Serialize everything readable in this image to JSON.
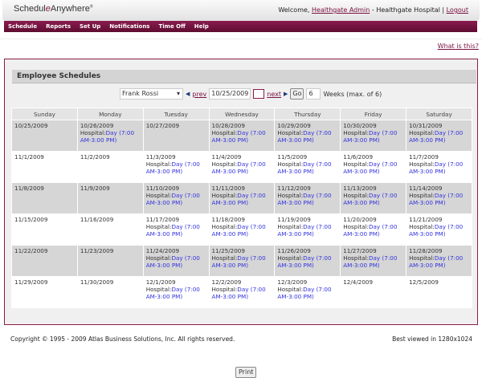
{
  "header": {
    "logo": "ScheduleAnywhere",
    "welcome_prefix": "Welcome, ",
    "user": "Healthgate Admin",
    "org": " - Healthgate Hospital | ",
    "logout": "Logout"
  },
  "nav": [
    "Schedule",
    "Reports",
    "Set Up",
    "Notifications",
    "Time Off",
    "Help"
  ],
  "what_is_this": "What is this?",
  "panel": {
    "title": "Employee Schedules",
    "employee": "Frank Rossi",
    "prev": "prev",
    "date": "10/25/2009",
    "next": "next",
    "go": "Go",
    "weeks": "6",
    "weeks_label": "Weeks (max. of 6)",
    "print": "Print"
  },
  "days": [
    "Sunday",
    "Monday",
    "Tuesday",
    "Wednesday",
    "Thursday",
    "Friday",
    "Saturday"
  ],
  "shift_prefix": "Hospital:",
  "shift_label": "Day (7:00 AM-3:00 PM)",
  "weeks": [
    [
      {
        "d": "10/25/2009",
        "s": false
      },
      {
        "d": "10/26/2009",
        "s": true
      },
      {
        "d": "10/27/2009",
        "s": false
      },
      {
        "d": "10/28/2009",
        "s": true
      },
      {
        "d": "10/29/2009",
        "s": true
      },
      {
        "d": "10/30/2009",
        "s": true
      },
      {
        "d": "10/31/2009",
        "s": true
      }
    ],
    [
      {
        "d": "11/1/2009",
        "s": false
      },
      {
        "d": "11/2/2009",
        "s": false
      },
      {
        "d": "11/3/2009",
        "s": true
      },
      {
        "d": "11/4/2009",
        "s": true
      },
      {
        "d": "11/5/2009",
        "s": true
      },
      {
        "d": "11/6/2009",
        "s": true
      },
      {
        "d": "11/7/2009",
        "s": true
      }
    ],
    [
      {
        "d": "11/8/2009",
        "s": false
      },
      {
        "d": "11/9/2009",
        "s": false
      },
      {
        "d": "11/10/2009",
        "s": true
      },
      {
        "d": "11/11/2009",
        "s": true
      },
      {
        "d": "11/12/2009",
        "s": true
      },
      {
        "d": "11/13/2009",
        "s": true
      },
      {
        "d": "11/14/2009",
        "s": true
      }
    ],
    [
      {
        "d": "11/15/2009",
        "s": false
      },
      {
        "d": "11/16/2009",
        "s": false
      },
      {
        "d": "11/17/2009",
        "s": true
      },
      {
        "d": "11/18/2009",
        "s": true
      },
      {
        "d": "11/19/2009",
        "s": true
      },
      {
        "d": "11/20/2009",
        "s": true
      },
      {
        "d": "11/21/2009",
        "s": true
      }
    ],
    [
      {
        "d": "11/22/2009",
        "s": false
      },
      {
        "d": "11/23/2009",
        "s": false
      },
      {
        "d": "11/24/2009",
        "s": true
      },
      {
        "d": "11/25/2009",
        "s": true
      },
      {
        "d": "11/26/2009",
        "s": true
      },
      {
        "d": "11/27/2009",
        "s": true
      },
      {
        "d": "11/28/2009",
        "s": true
      }
    ],
    [
      {
        "d": "11/29/2009",
        "s": false
      },
      {
        "d": "11/30/2009",
        "s": false
      },
      {
        "d": "12/1/2009",
        "s": true
      },
      {
        "d": "12/2/2009",
        "s": true
      },
      {
        "d": "12/3/2009",
        "s": true
      },
      {
        "d": "12/4/2009",
        "s": false
      },
      {
        "d": "12/5/2009",
        "s": false
      }
    ]
  ],
  "footer": {
    "copyright": "Copyright © 1995 - 2009 Atlas Business Solutions, Inc. All rights reserved.",
    "best": "Best viewed in 1280x1024"
  },
  "colors": {
    "brand": "#7a1040",
    "shift": "#3333dd"
  }
}
